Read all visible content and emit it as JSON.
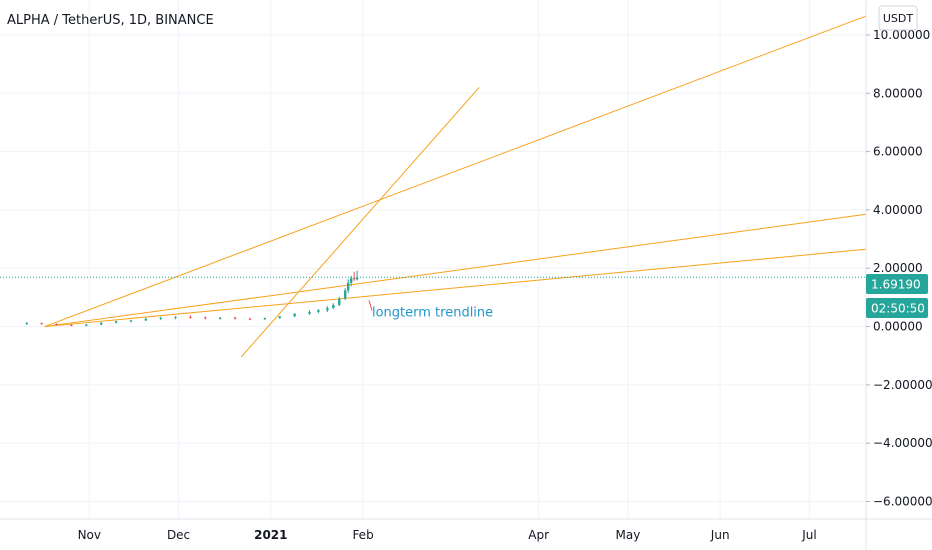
{
  "header": {
    "title": "ALPHA / TetherUS, 1D, BINANCE",
    "currency_button": "USDT"
  },
  "price_badge": {
    "value": "1.69190",
    "color": "#26a69a"
  },
  "countdown_badge": {
    "value": "02:50:50",
    "color": "#26a69a"
  },
  "chart_data": {
    "type": "candlestick",
    "title": "ALPHA / TetherUS, 1D, BINANCE",
    "y_unit": "USDT",
    "ylim": [
      -6.6,
      11.2
    ],
    "xlim": [
      "2020-10-02",
      "2021-07-20"
    ],
    "grid": true,
    "y_ticks": [
      {
        "value": 10,
        "label": "10.00000"
      },
      {
        "value": 8,
        "label": "8.00000"
      },
      {
        "value": 6,
        "label": "6.00000"
      },
      {
        "value": 4,
        "label": "4.00000"
      },
      {
        "value": 2,
        "label": "2.00000"
      },
      {
        "value": 0,
        "label": "0.00000"
      },
      {
        "value": -2,
        "label": "−2.00000"
      },
      {
        "value": -4,
        "label": "−4.00000"
      },
      {
        "value": -6,
        "label": "−6.00000"
      }
    ],
    "x_ticks": [
      {
        "date": "2020-11-01",
        "label": "Nov",
        "bold": false
      },
      {
        "date": "2020-12-01",
        "label": "Dec",
        "bold": false
      },
      {
        "date": "2021-01-01",
        "label": "2021",
        "bold": true
      },
      {
        "date": "2021-02-01",
        "label": "Feb",
        "bold": false
      },
      {
        "date": "2021-04-01",
        "label": "Apr",
        "bold": false
      },
      {
        "date": "2021-05-01",
        "label": "May",
        "bold": false
      },
      {
        "date": "2021-06-01",
        "label": "Jun",
        "bold": false
      },
      {
        "date": "2021-07-01",
        "label": "Jul",
        "bold": false
      }
    ],
    "last_price": 1.6919,
    "price_series": [
      {
        "date": "2020-10-11",
        "open": 0.1,
        "high": 0.16,
        "low": 0.06,
        "close": 0.12
      },
      {
        "date": "2020-10-16",
        "open": 0.12,
        "high": 0.14,
        "low": 0.07,
        "close": 0.09
      },
      {
        "date": "2020-10-21",
        "open": 0.09,
        "high": 0.11,
        "low": 0.04,
        "close": 0.06
      },
      {
        "date": "2020-10-26",
        "open": 0.06,
        "high": 0.08,
        "low": 0.01,
        "close": 0.03
      },
      {
        "date": "2020-10-31",
        "open": 0.03,
        "high": 0.09,
        "low": 0.01,
        "close": 0.07
      },
      {
        "date": "2020-11-05",
        "open": 0.07,
        "high": 0.15,
        "low": 0.05,
        "close": 0.13
      },
      {
        "date": "2020-11-10",
        "open": 0.13,
        "high": 0.2,
        "low": 0.11,
        "close": 0.18
      },
      {
        "date": "2020-11-15",
        "open": 0.18,
        "high": 0.23,
        "low": 0.14,
        "close": 0.21
      },
      {
        "date": "2020-11-20",
        "open": 0.21,
        "high": 0.3,
        "low": 0.19,
        "close": 0.27
      },
      {
        "date": "2020-11-25",
        "open": 0.27,
        "high": 0.34,
        "low": 0.22,
        "close": 0.3
      },
      {
        "date": "2020-11-30",
        "open": 0.3,
        "high": 0.36,
        "low": 0.25,
        "close": 0.33
      },
      {
        "date": "2020-12-05",
        "open": 0.33,
        "high": 0.38,
        "low": 0.27,
        "close": 0.31
      },
      {
        "date": "2020-12-10",
        "open": 0.31,
        "high": 0.35,
        "low": 0.25,
        "close": 0.28
      },
      {
        "date": "2020-12-15",
        "open": 0.28,
        "high": 0.33,
        "low": 0.24,
        "close": 0.3
      },
      {
        "date": "2020-12-20",
        "open": 0.3,
        "high": 0.34,
        "low": 0.24,
        "close": 0.27
      },
      {
        "date": "2020-12-25",
        "open": 0.27,
        "high": 0.3,
        "low": 0.22,
        "close": 0.25
      },
      {
        "date": "2020-12-30",
        "open": 0.25,
        "high": 0.31,
        "low": 0.23,
        "close": 0.29
      },
      {
        "date": "2021-01-04",
        "open": 0.29,
        "high": 0.37,
        "low": 0.27,
        "close": 0.35
      },
      {
        "date": "2021-01-09",
        "open": 0.35,
        "high": 0.46,
        "low": 0.33,
        "close": 0.44
      },
      {
        "date": "2021-01-14",
        "open": 0.44,
        "high": 0.55,
        "low": 0.4,
        "close": 0.5
      },
      {
        "date": "2021-01-17",
        "open": 0.5,
        "high": 0.6,
        "low": 0.46,
        "close": 0.56
      },
      {
        "date": "2021-01-20",
        "open": 0.56,
        "high": 0.7,
        "low": 0.5,
        "close": 0.64
      },
      {
        "date": "2021-01-22",
        "open": 0.64,
        "high": 0.8,
        "low": 0.6,
        "close": 0.74
      },
      {
        "date": "2021-01-24",
        "open": 0.74,
        "high": 1.02,
        "low": 0.7,
        "close": 0.96
      },
      {
        "date": "2021-01-26",
        "open": 0.96,
        "high": 1.32,
        "low": 0.9,
        "close": 1.24
      },
      {
        "date": "2021-01-27",
        "open": 1.24,
        "high": 1.62,
        "low": 1.15,
        "close": 1.5
      },
      {
        "date": "2021-01-28",
        "open": 1.5,
        "high": 1.74,
        "low": 1.38,
        "close": 1.66
      },
      {
        "date": "2021-01-29",
        "open": 1.66,
        "high": 1.88,
        "low": 1.56,
        "close": 1.62
      },
      {
        "date": "2021-01-30",
        "open": 1.62,
        "high": 1.92,
        "low": 1.58,
        "close": 1.69
      }
    ],
    "trendlines": [
      {
        "from": {
          "date": "2020-10-17",
          "value": 0.0
        },
        "to": {
          "date": "2021-07-20",
          "value": 10.65
        }
      },
      {
        "from": {
          "date": "2020-12-22",
          "value": -1.05
        },
        "to": {
          "date": "2021-03-12",
          "value": 8.2
        }
      },
      {
        "from": {
          "date": "2020-10-17",
          "value": 0.0
        },
        "to": {
          "date": "2021-07-20",
          "value": 3.85
        }
      },
      {
        "from": {
          "date": "2020-10-17",
          "value": 0.0
        },
        "to": {
          "date": "2021-07-20",
          "value": 2.65
        }
      }
    ],
    "annotations": [
      {
        "text": "longterm trendline",
        "date": "2021-02-04",
        "value": 0.35,
        "pointer": {
          "from": {
            "date": "2021-02-03",
            "value": 0.9
          },
          "to": {
            "date": "2021-02-04",
            "value": 0.55
          }
        }
      }
    ]
  },
  "colors": {
    "trendline": "#f7a21b",
    "bullish": "#26a69a",
    "bearish": "#ef5350",
    "grid": "#f0f3fa",
    "price_line": "#26a69a",
    "annotation": "#2196c8",
    "axis_text": "#131722"
  }
}
